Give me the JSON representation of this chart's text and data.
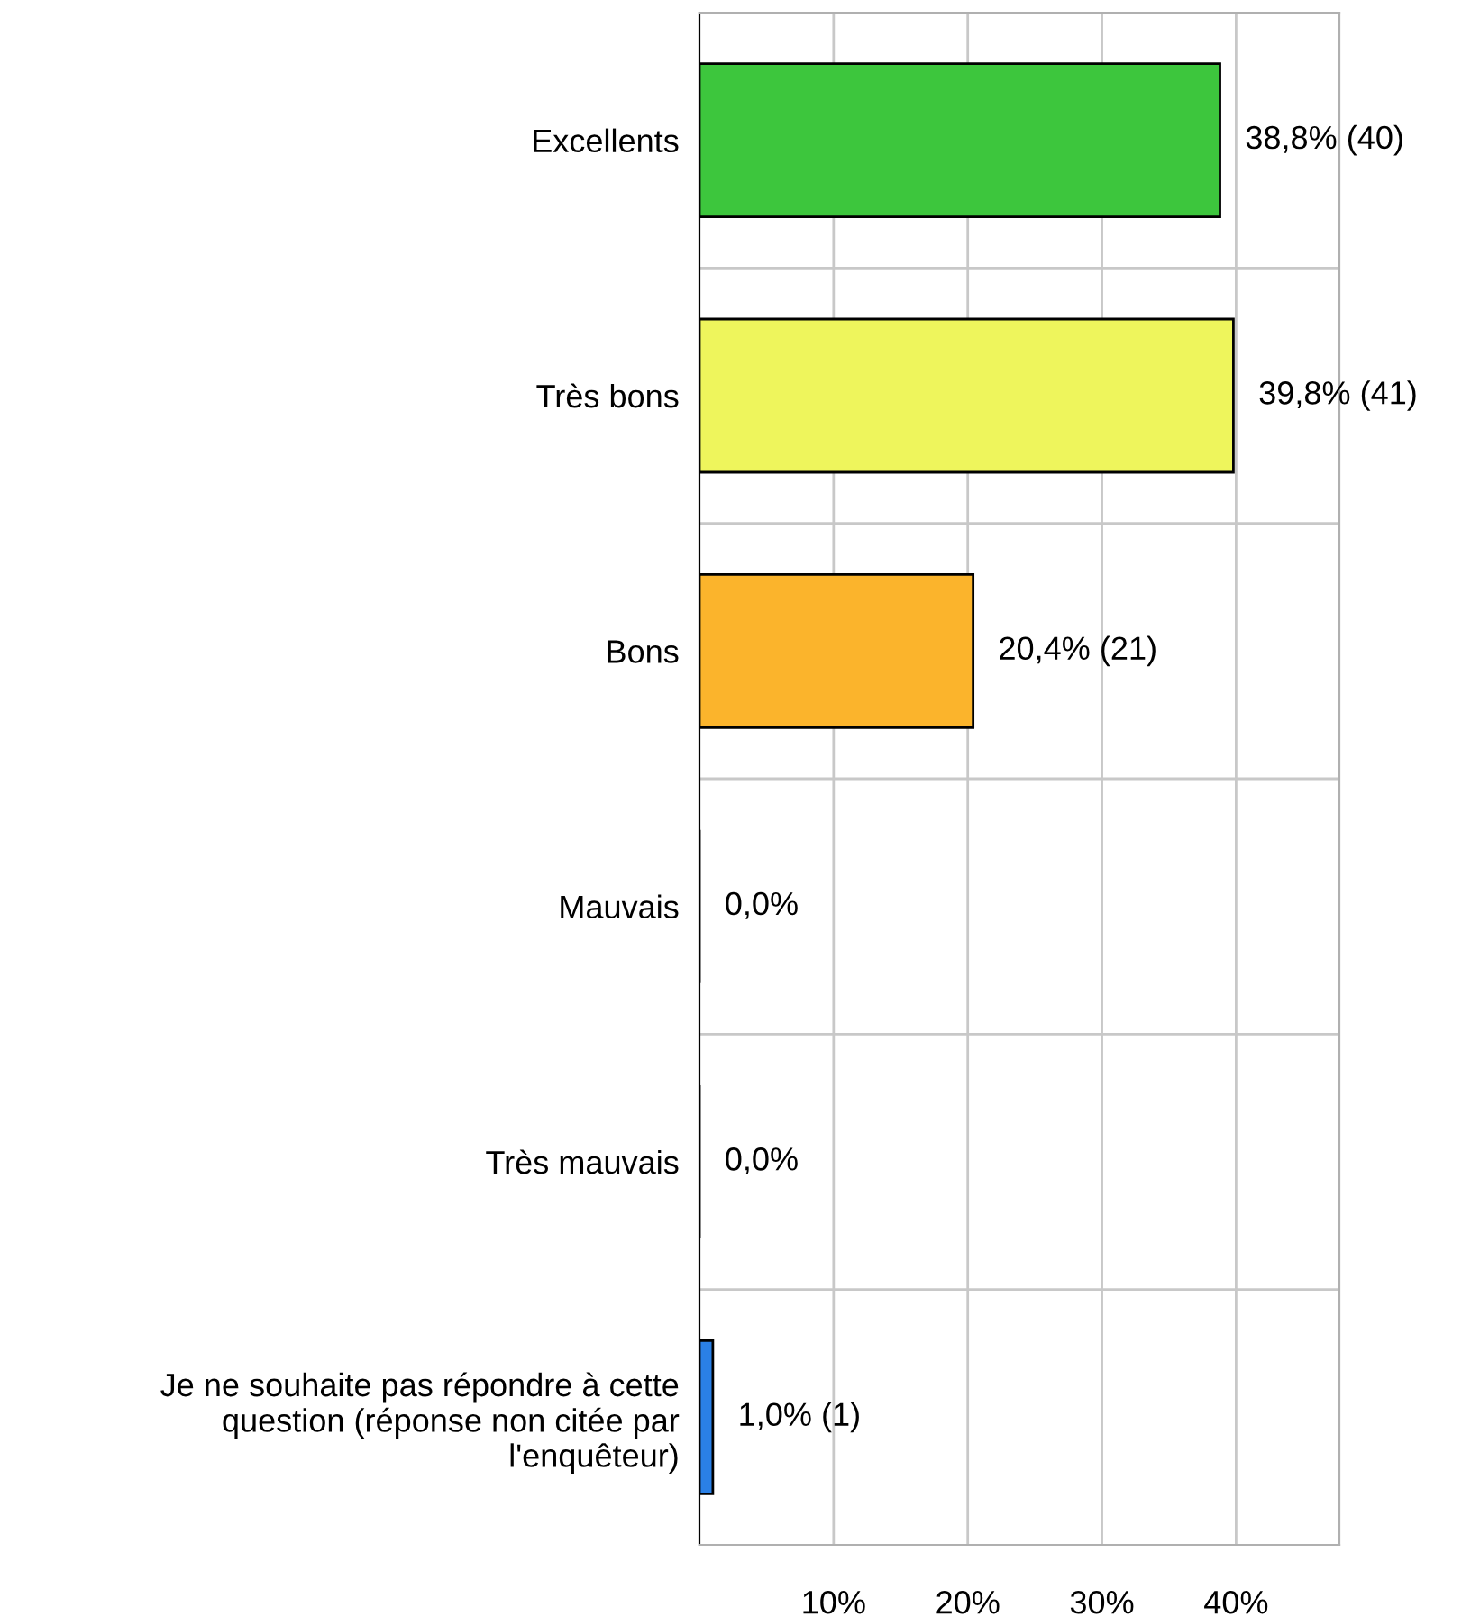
{
  "chart_data": {
    "type": "bar",
    "orientation": "horizontal",
    "categories": [
      "Excellents",
      "Très bons",
      "Bons",
      "Mauvais",
      "Très mauvais",
      "Je ne souhaite pas répondre à cette\nquestion (réponse non citée par\nl'enquêteur)"
    ],
    "values": [
      38.8,
      39.8,
      20.4,
      0.0,
      0.0,
      1.0
    ],
    "colors": [
      "#3dc63d",
      "#eef55c",
      "#fbb42c",
      "#000000",
      "#000000",
      "#2a80e6"
    ],
    "value_labels": [
      "38,8% (40)",
      "39,8% (41)",
      "20,4% (21)",
      "0,0%",
      "0,0%",
      "1,0% (1)"
    ],
    "xlim": [
      0,
      47.7
    ],
    "xticks": [
      {
        "value": 10,
        "label": "10%"
      },
      {
        "value": 20,
        "label": "20%"
      },
      {
        "value": 30,
        "label": "30%"
      },
      {
        "value": 40,
        "label": "40%"
      }
    ],
    "grid": true,
    "legend": false
  }
}
